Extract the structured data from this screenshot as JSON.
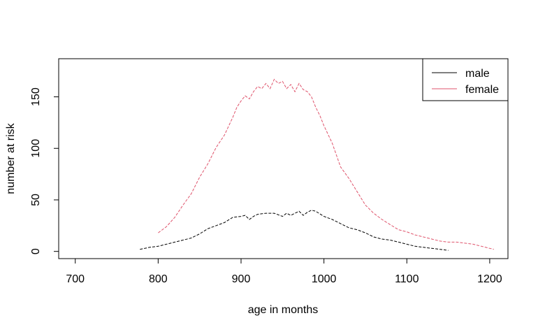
{
  "chart_data": {
    "type": "line",
    "title": "",
    "xlabel": "age in months",
    "ylabel": "number at risk",
    "xlim": [
      680,
      1222
    ],
    "ylim": [
      -7,
      187
    ],
    "x_ticks": [
      700,
      800,
      900,
      1000,
      1100,
      1200
    ],
    "y_ticks": [
      0,
      50,
      100,
      150
    ],
    "grid": false,
    "legend_position": "top-right",
    "series": [
      {
        "name": "male",
        "color": "#000000",
        "line_style": "dashed",
        "x": [
          778,
          790,
          800,
          810,
          820,
          830,
          840,
          845,
          850,
          860,
          870,
          880,
          890,
          900,
          905,
          910,
          915,
          920,
          930,
          940,
          950,
          955,
          960,
          970,
          975,
          980,
          985,
          990,
          1000,
          1010,
          1020,
          1030,
          1040,
          1050,
          1060,
          1070,
          1080,
          1090,
          1100,
          1110,
          1120,
          1130,
          1140,
          1150
        ],
        "y": [
          2,
          4,
          5,
          7,
          9,
          11,
          13,
          15,
          17,
          22,
          25,
          28,
          33,
          34,
          35,
          31,
          34,
          36,
          37,
          37,
          34,
          37,
          35,
          39,
          35,
          38,
          40,
          39,
          34,
          31,
          27,
          23,
          21,
          18,
          14,
          12,
          11,
          9,
          7,
          5,
          4,
          3,
          2,
          1
        ]
      },
      {
        "name": "female",
        "color": "#DF536B",
        "line_style": "dashed",
        "x": [
          800,
          810,
          820,
          830,
          840,
          850,
          860,
          870,
          880,
          890,
          895,
          900,
          905,
          910,
          915,
          920,
          925,
          930,
          935,
          940,
          945,
          950,
          955,
          960,
          965,
          970,
          975,
          980,
          985,
          990,
          995,
          1000,
          1010,
          1020,
          1030,
          1040,
          1050,
          1060,
          1070,
          1080,
          1090,
          1100,
          1110,
          1120,
          1130,
          1140,
          1150,
          1160,
          1170,
          1180,
          1190,
          1200,
          1205
        ],
        "y": [
          18,
          24,
          33,
          45,
          56,
          72,
          85,
          101,
          113,
          130,
          140,
          146,
          151,
          148,
          155,
          160,
          158,
          163,
          158,
          167,
          163,
          165,
          158,
          162,
          155,
          163,
          157,
          155,
          150,
          140,
          132,
          122,
          105,
          82,
          71,
          58,
          45,
          37,
          31,
          26,
          21,
          19,
          16,
          14,
          12,
          10,
          9,
          9,
          8,
          7,
          5,
          3,
          2
        ]
      }
    ]
  }
}
